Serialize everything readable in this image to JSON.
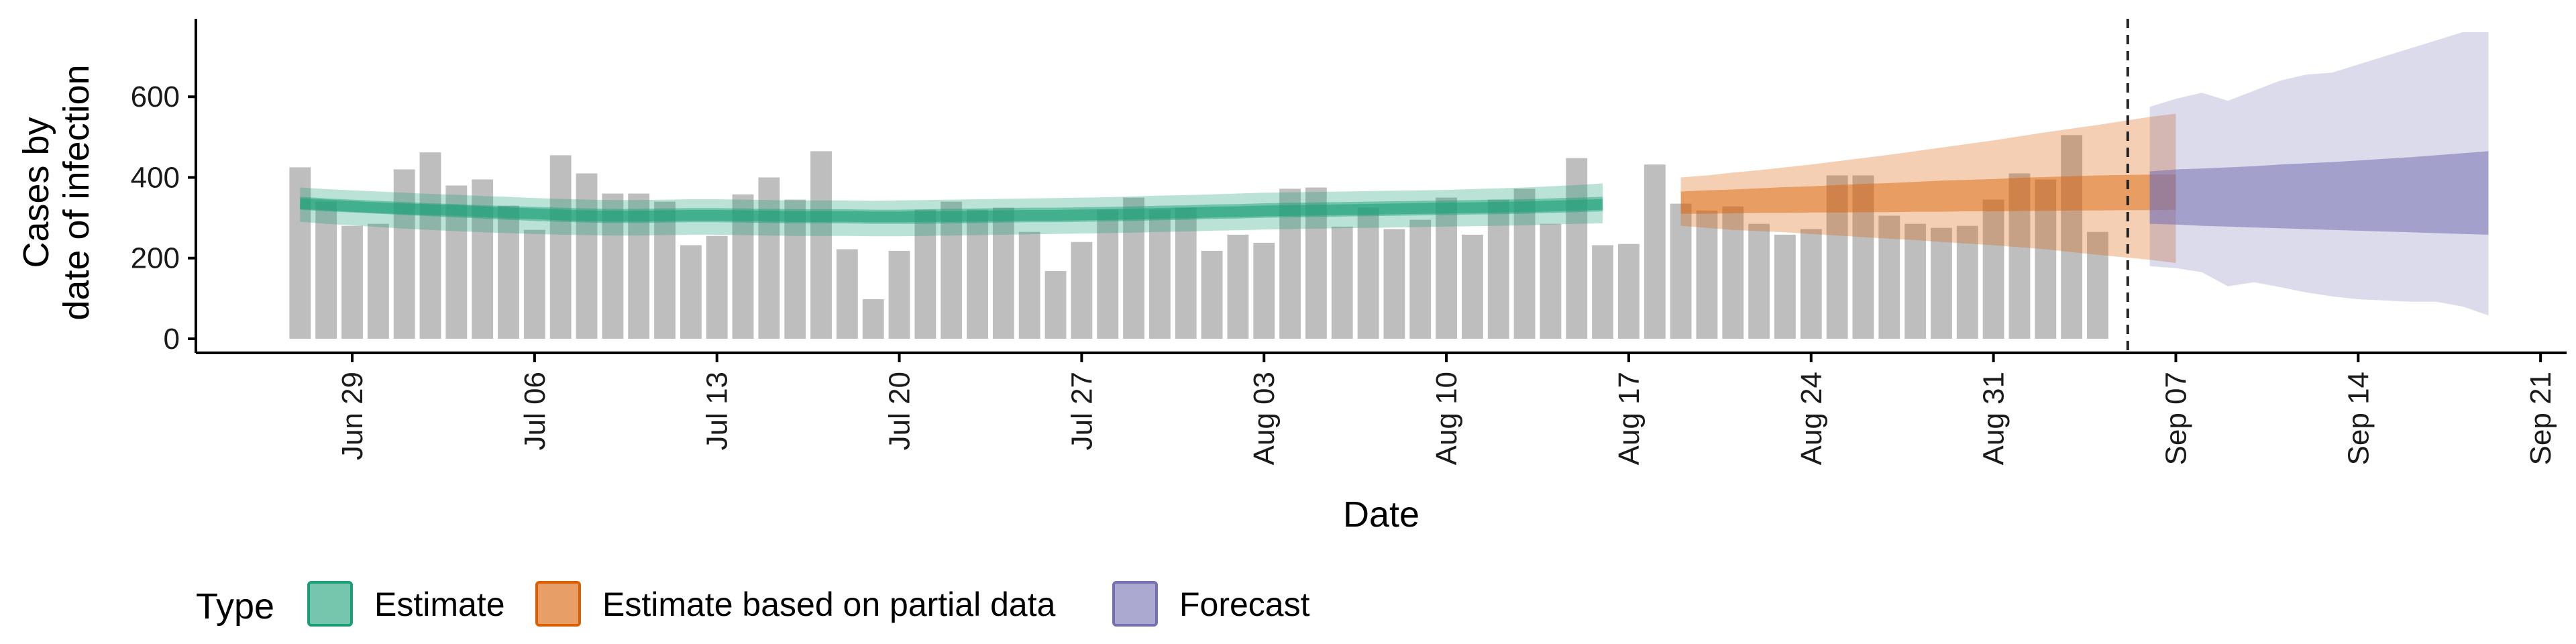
{
  "chart_data": {
    "type": "bar+ribbon",
    "xlabel": "Date",
    "ylabel_lines": [
      "Cases by",
      "date of infection"
    ],
    "ylim": [
      0,
      790
    ],
    "y_ticks": [
      0,
      200,
      400,
      600
    ],
    "x_range": [
      "2020-06-23",
      "2020-09-22"
    ],
    "x_ticks": [
      {
        "date": "2020-06-29",
        "label": "Jun 29"
      },
      {
        "date": "2020-07-06",
        "label": "Jul 06"
      },
      {
        "date": "2020-07-13",
        "label": "Jul 13"
      },
      {
        "date": "2020-07-20",
        "label": "Jul 20"
      },
      {
        "date": "2020-07-27",
        "label": "Jul 27"
      },
      {
        "date": "2020-08-03",
        "label": "Aug 03"
      },
      {
        "date": "2020-08-10",
        "label": "Aug 10"
      },
      {
        "date": "2020-08-17",
        "label": "Aug 17"
      },
      {
        "date": "2020-08-24",
        "label": "Aug 24"
      },
      {
        "date": "2020-08-31",
        "label": "Aug 31"
      },
      {
        "date": "2020-09-07",
        "label": "Sep 07"
      },
      {
        "date": "2020-09-14",
        "label": "Sep 14"
      },
      {
        "date": "2020-09-21",
        "label": "Sep 21"
      }
    ],
    "forecast_cutoff": "2020-09-05",
    "bars": {
      "start_date": "2020-06-27",
      "color": "#bebebe",
      "values": [
        425,
        340,
        280,
        285,
        420,
        462,
        380,
        395,
        330,
        270,
        455,
        410,
        360,
        360,
        340,
        232,
        255,
        358,
        400,
        345,
        465,
        222,
        98,
        218,
        320,
        340,
        320,
        325,
        265,
        168,
        240,
        320,
        350,
        320,
        325,
        218,
        258,
        238,
        372,
        375,
        278,
        325,
        272,
        295,
        350,
        258,
        345,
        372,
        285,
        448,
        232,
        235,
        432,
        335,
        318,
        328,
        285,
        258,
        272,
        405,
        405,
        305,
        285,
        275,
        280,
        345,
        410,
        395,
        505,
        265
      ]
    },
    "series": [
      {
        "name": "Estimate",
        "color": "#1b9e77",
        "start_date": "2020-06-27",
        "median": [
          335,
          332,
          328,
          325,
          322,
          320,
          318,
          315,
          312,
          310,
          307,
          305,
          304,
          304,
          305,
          306,
          306,
          305,
          304,
          303,
          303,
          303,
          302,
          302,
          303,
          303,
          304,
          305,
          306,
          306,
          307,
          308,
          309,
          311,
          312,
          314,
          315,
          317,
          318,
          319,
          320,
          321,
          322,
          323,
          324,
          325,
          326,
          327,
          329,
          331,
          333
        ],
        "q25": [
          320,
          316,
          313,
          310,
          307,
          304,
          301,
          298,
          295,
          292,
          290,
          288,
          287,
          287,
          288,
          289,
          289,
          288,
          287,
          286,
          286,
          286,
          285,
          285,
          285,
          286,
          287,
          288,
          289,
          289,
          290,
          291,
          292,
          294,
          295,
          297,
          298,
          300,
          301,
          302,
          303,
          304,
          305,
          306,
          307,
          308,
          309,
          310,
          312,
          314,
          316
        ],
        "q75": [
          352,
          348,
          345,
          342,
          339,
          336,
          334,
          331,
          329,
          327,
          325,
          323,
          322,
          322,
          323,
          324,
          324,
          323,
          322,
          321,
          321,
          321,
          320,
          320,
          321,
          322,
          323,
          324,
          325,
          325,
          326,
          327,
          328,
          330,
          331,
          333,
          334,
          336,
          337,
          338,
          339,
          340,
          341,
          342,
          343,
          344,
          345,
          346,
          348,
          350,
          352
        ],
        "q05": [
          290,
          285,
          281,
          277,
          273,
          270,
          267,
          264,
          262,
          260,
          258,
          257,
          256,
          256,
          257,
          258,
          258,
          257,
          256,
          255,
          255,
          255,
          254,
          254,
          255,
          256,
          257,
          258,
          259,
          260,
          261,
          262,
          263,
          265,
          266,
          268,
          269,
          271,
          272,
          273,
          274,
          275,
          276,
          277,
          278,
          279,
          280,
          281,
          283,
          285,
          286
        ],
        "q95": [
          375,
          371,
          368,
          365,
          362,
          359,
          357,
          354,
          352,
          349,
          347,
          345,
          344,
          344,
          345,
          346,
          346,
          345,
          344,
          343,
          343,
          343,
          342,
          343,
          344,
          345,
          346,
          347,
          348,
          349,
          350,
          351,
          353,
          355,
          356,
          358,
          360,
          362,
          363,
          364,
          365,
          366,
          367,
          368,
          369,
          371,
          373,
          375,
          378,
          381,
          385
        ]
      },
      {
        "name": "Estimate based on partial data",
        "color": "#d95f02",
        "start_date": "2020-08-19",
        "median": [
          338,
          340,
          342,
          343,
          345,
          347,
          348,
          350,
          352,
          353,
          355,
          357,
          358,
          360,
          362,
          363,
          365,
          367,
          368,
          370
        ],
        "q25": [
          310,
          310,
          311,
          312,
          312,
          313,
          313,
          314,
          314,
          315,
          315,
          316,
          316,
          317,
          317,
          318,
          318,
          319,
          319,
          320
        ],
        "q75": [
          365,
          368,
          370,
          373,
          376,
          378,
          381,
          384,
          386,
          389,
          392,
          394,
          396,
          399,
          401,
          403,
          405,
          406,
          407,
          408
        ],
        "q05": [
          280,
          275,
          270,
          267,
          264,
          260,
          256,
          252,
          248,
          245,
          240,
          236,
          232,
          227,
          222,
          215,
          208,
          202,
          196,
          188
        ],
        "q95": [
          400,
          405,
          412,
          418,
          425,
          432,
          440,
          448,
          456,
          465,
          474,
          483,
          492,
          502,
          512,
          521,
          530,
          540,
          550,
          558
        ]
      },
      {
        "name": "Forecast",
        "color": "#7570b3",
        "start_date": "2020-09-06",
        "median": [
          365,
          367,
          368,
          368,
          369,
          369,
          370,
          371,
          372,
          373,
          374,
          375,
          376,
          377
        ],
        "q25": [
          285,
          283,
          280,
          278,
          276,
          274,
          272,
          270,
          268,
          266,
          264,
          262,
          260,
          258
        ],
        "q75": [
          415,
          420,
          422,
          425,
          428,
          432,
          435,
          438,
          442,
          446,
          450,
          455,
          460,
          465
        ],
        "q05": [
          180,
          175,
          165,
          130,
          140,
          128,
          115,
          105,
          98,
          95,
          92,
          92,
          80,
          58
        ],
        "q95": [
          575,
          595,
          610,
          590,
          615,
          640,
          655,
          660,
          680,
          700,
          720,
          740,
          760,
          760
        ]
      }
    ],
    "legend": {
      "title": "Type",
      "placement": "bottom-left",
      "items": [
        {
          "label": "Estimate",
          "color": "#1b9e77"
        },
        {
          "label": "Estimate based on partial data",
          "color": "#d95f02"
        },
        {
          "label": "Forecast",
          "color": "#7570b3"
        }
      ]
    }
  }
}
